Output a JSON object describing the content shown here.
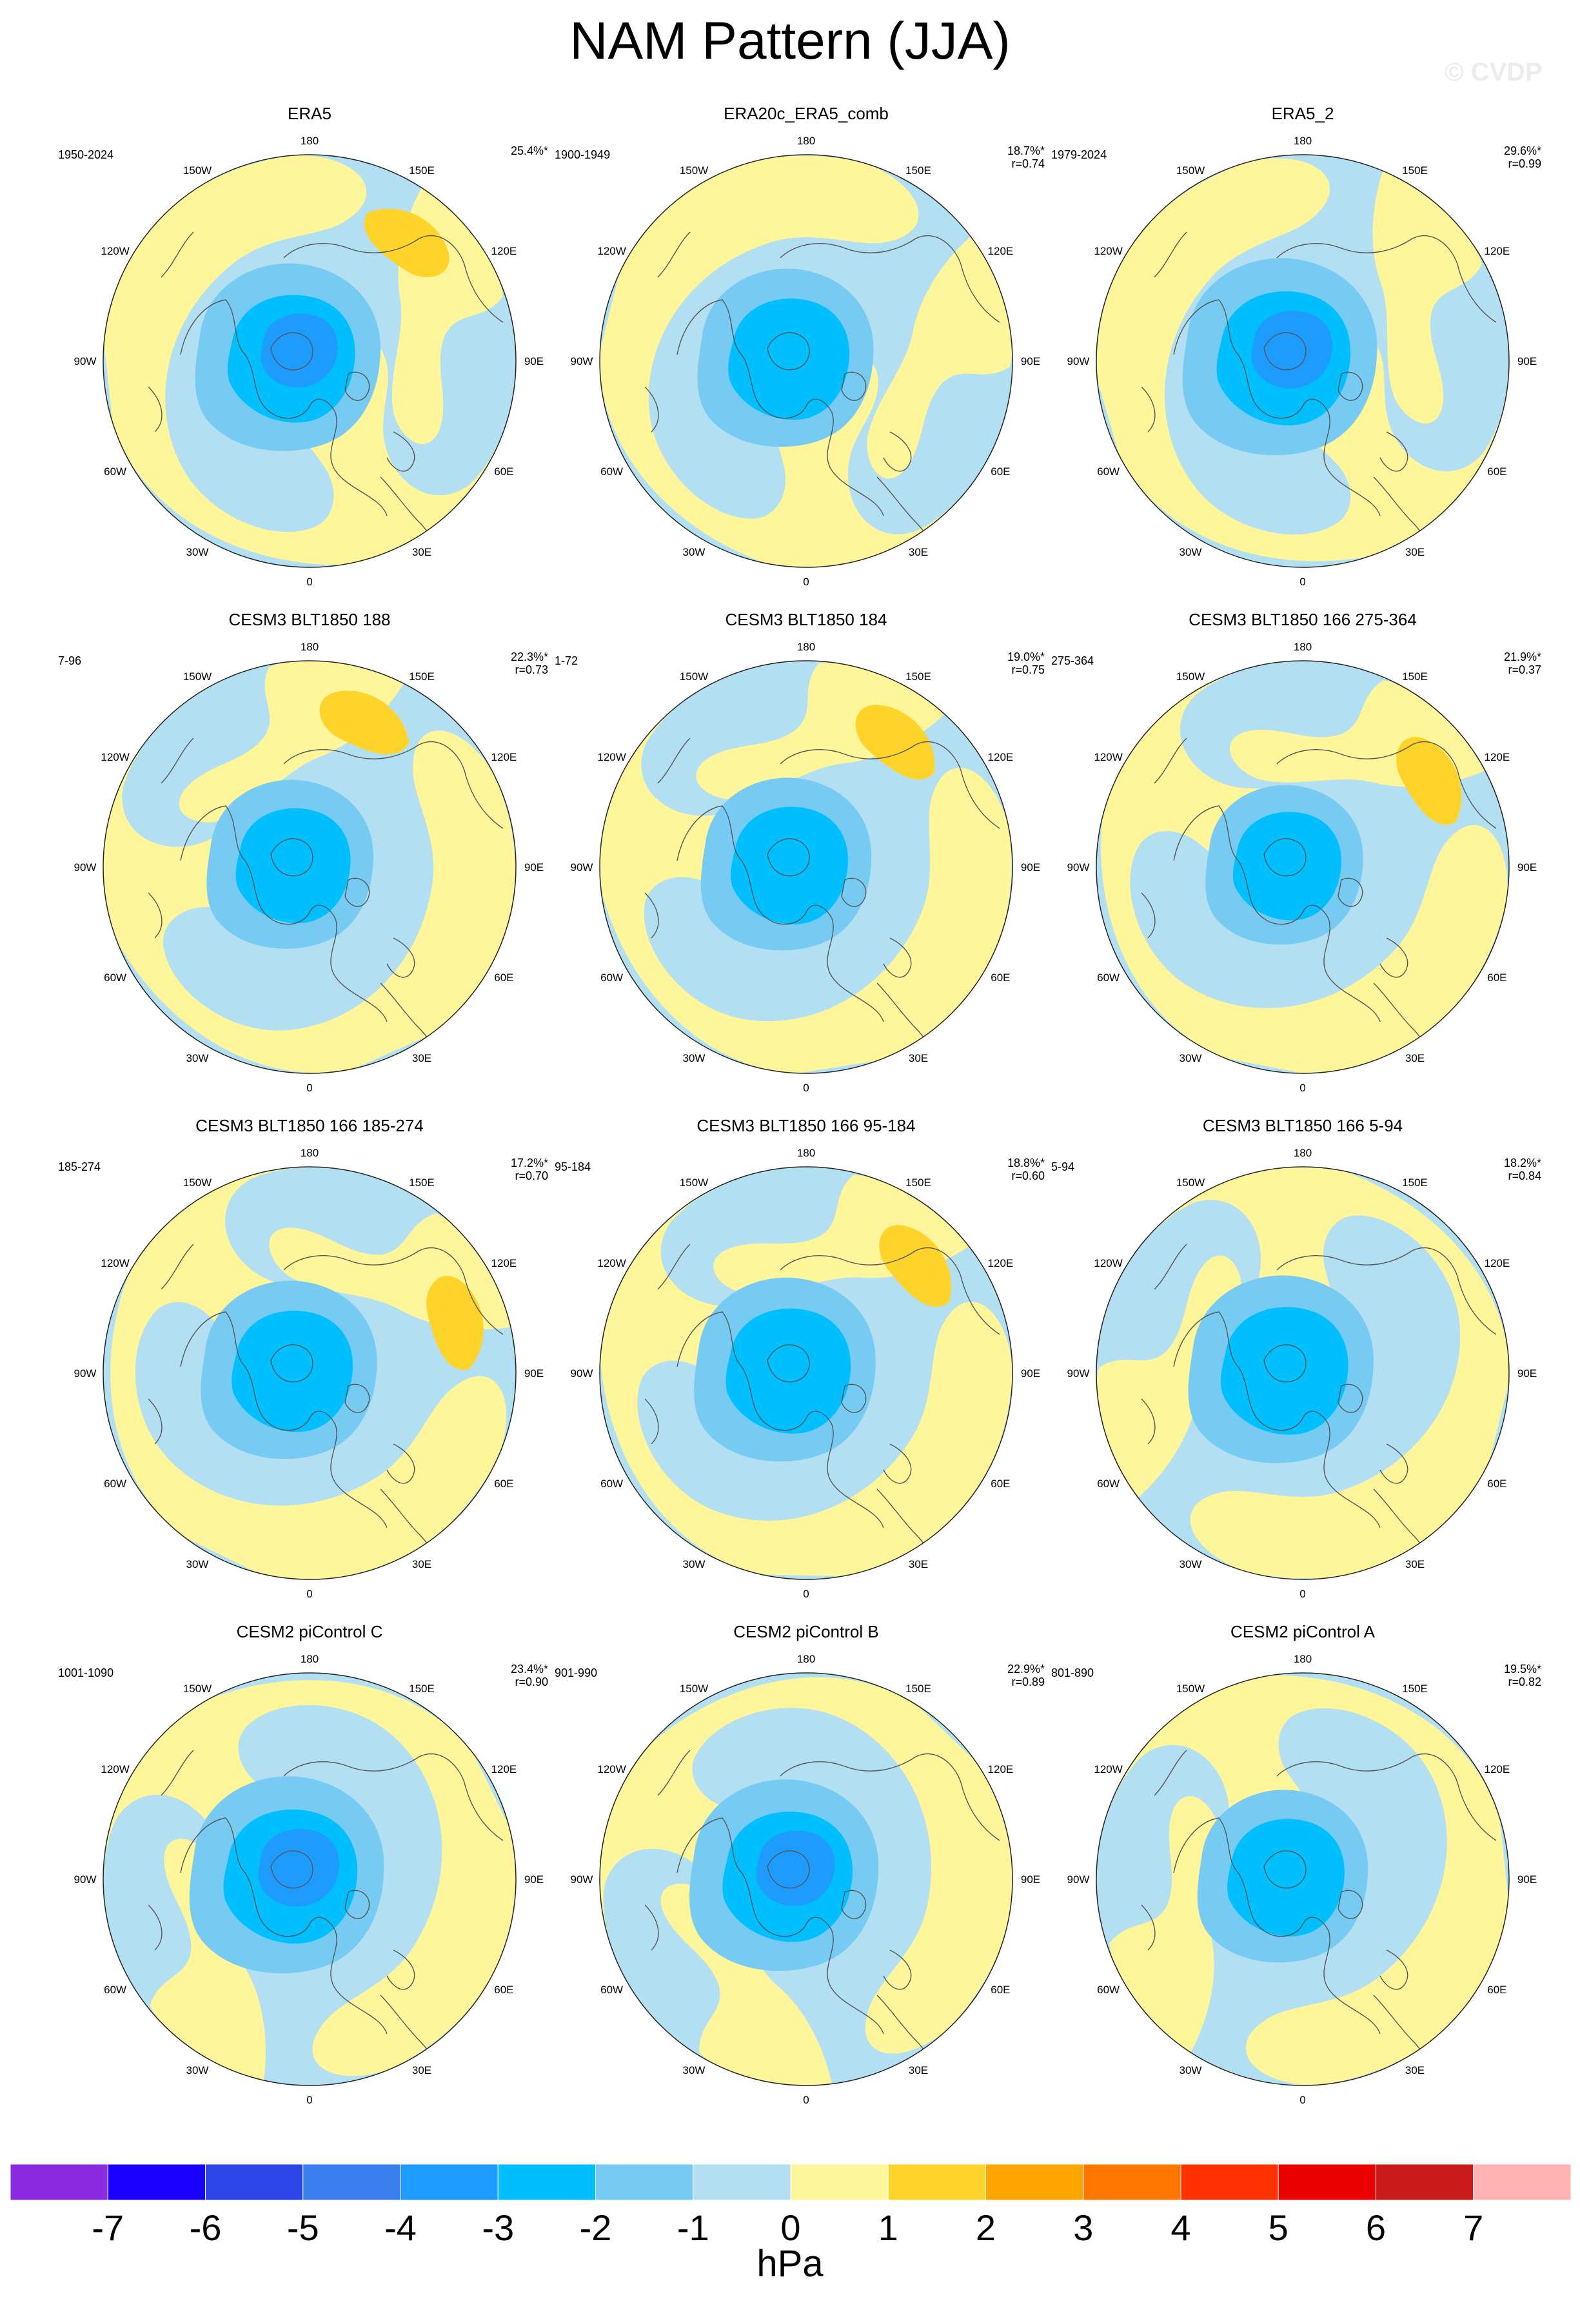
{
  "title": "NAM Pattern (JJA)",
  "watermark": "© CVDP",
  "longitude_labels": [
    "180",
    "150E",
    "120E",
    "90E",
    "60E",
    "30E",
    "0",
    "30W",
    "60W",
    "90W",
    "120W",
    "150W"
  ],
  "panels": [
    {
      "title": "ERA5",
      "period": "1950-2024",
      "variance": "25.4%*",
      "r": ""
    },
    {
      "title": "ERA20c_ERA5_comb",
      "period": "1900-1949",
      "variance": "18.7%*",
      "r": "r=0.74"
    },
    {
      "title": "ERA5_2",
      "period": "1979-2024",
      "variance": "29.6%*",
      "r": "r=0.99"
    },
    {
      "title": "CESM3 BLT1850 188",
      "period": "7-96",
      "variance": "22.3%*",
      "r": "r=0.73"
    },
    {
      "title": "CESM3 BLT1850 184",
      "period": "1-72",
      "variance": "19.0%*",
      "r": "r=0.75"
    },
    {
      "title": "CESM3 BLT1850 166 275-364",
      "period": "275-364",
      "variance": "21.9%*",
      "r": "r=0.37"
    },
    {
      "title": "CESM3 BLT1850 166 185-274",
      "period": "185-274",
      "variance": "17.2%*",
      "r": "r=0.70"
    },
    {
      "title": "CESM3 BLT1850 166 95-184",
      "period": "95-184",
      "variance": "18.8%*",
      "r": "r=0.60"
    },
    {
      "title": "CESM3 BLT1850 166 5-94",
      "period": "5-94",
      "variance": "18.2%*",
      "r": "r=0.84"
    },
    {
      "title": "CESM2 piControl C",
      "period": "1001-1090",
      "variance": "23.4%*",
      "r": "r=0.90"
    },
    {
      "title": "CESM2 piControl B",
      "period": "901-990",
      "variance": "22.9%*",
      "r": "r=0.89"
    },
    {
      "title": "CESM2 piControl A",
      "period": "801-890",
      "variance": "19.5%*",
      "r": "r=0.82"
    }
  ],
  "colorbar": {
    "units": "hPa",
    "labels": [
      "-7",
      "-6",
      "-5",
      "-4",
      "-3",
      "-2",
      "-1",
      "0",
      "1",
      "2",
      "3",
      "4",
      "5",
      "6",
      "7"
    ],
    "colors": [
      "#8a2be2",
      "#1a00ff",
      "#2a45e8",
      "#3b7fef",
      "#1e9bff",
      "#00bfff",
      "#77cbf2",
      "#b3dff2",
      "#fff59a",
      "#ffd42a",
      "#ffa500",
      "#ff7600",
      "#ff3300",
      "#ee0000",
      "#cc1a1a",
      "#ffb3b3"
    ]
  },
  "palette": {
    "coast": "#555555",
    "neg1": "#b3dff2",
    "neg2": "#77cbf2",
    "neg3": "#00bfff",
    "neg4": "#1e9bff",
    "pos1": "#fff59a",
    "pos2": "#ffd42a"
  }
}
